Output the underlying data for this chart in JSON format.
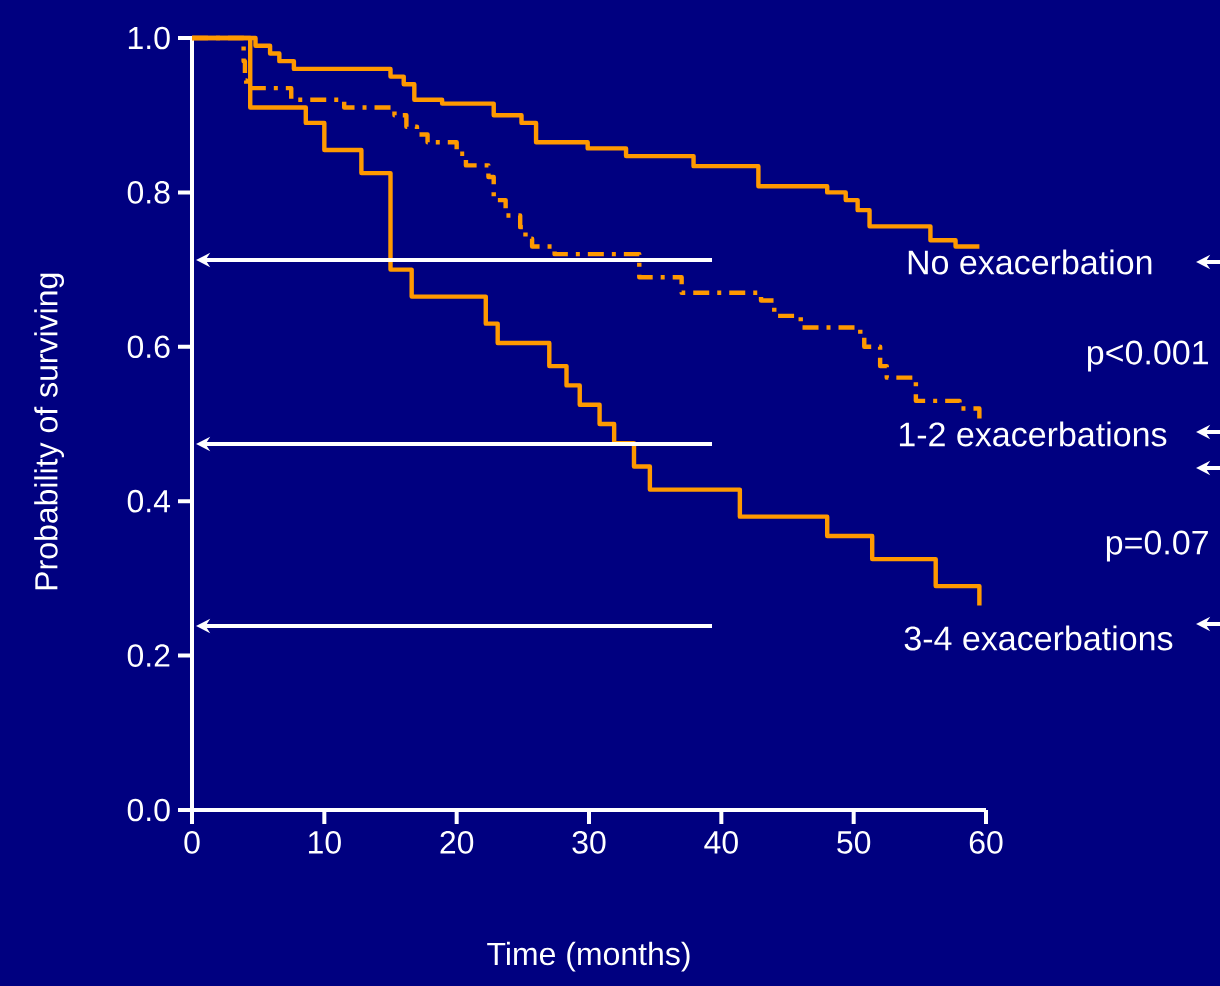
{
  "chart_data": {
    "type": "step",
    "xlabel": "Time (months)",
    "ylabel": "Probability of surviving",
    "xlim": [
      0,
      60
    ],
    "ylim": [
      0,
      1
    ],
    "xticks": [
      0,
      10,
      20,
      30,
      40,
      50,
      60
    ],
    "yticks": [
      {
        "value": 0,
        "label": "0.0"
      },
      0.2,
      0.4,
      0.6,
      0.8,
      {
        "value": 1,
        "label": "1.0"
      }
    ],
    "grid": false,
    "marker": "none",
    "annotations": [
      "No exacerbation",
      "p<0.001",
      "1-2 exacerbations",
      "p=0.07",
      "3-4 exacerbations"
    ],
    "series": [
      {
        "color": "#ff9900",
        "line_style": "solid",
        "x": [
          0,
          4.8,
          5.9,
          6.6,
          7.7,
          15.0,
          16.0,
          16.8,
          18.9,
          22.8,
          24.9,
          26.0,
          29.9,
          32.8,
          37.9,
          42.8,
          48.0,
          49.4,
          50.3,
          51.2,
          55.8,
          57.7,
          59.5
        ],
        "values": [
          1.0,
          0.99,
          0.98,
          0.97,
          0.96,
          0.95,
          0.94,
          0.92,
          0.915,
          0.9,
          0.89,
          0.865,
          0.857,
          0.847,
          0.834,
          0.808,
          0.8,
          0.79,
          0.777,
          0.756,
          0.738,
          0.73,
          0.73
        ]
      },
      {
        "color": "#ff9900",
        "line_style": "dashdot",
        "x": [
          0,
          3.9,
          4.0,
          4.1,
          7.5,
          11.5,
          15.3,
          16.2,
          17.0,
          17.8,
          20.0,
          20.7,
          22.4,
          22.8,
          23.7,
          24.8,
          25.2,
          25.7,
          27.4,
          33.8,
          37.0,
          43.0,
          44.0,
          46.0,
          50.5,
          50.8,
          52.0,
          52.5,
          54.7,
          58.0,
          59.5
        ],
        "values": [
          1.0,
          0.97,
          0.945,
          0.935,
          0.92,
          0.91,
          0.9,
          0.885,
          0.875,
          0.865,
          0.85,
          0.835,
          0.82,
          0.79,
          0.77,
          0.755,
          0.74,
          0.73,
          0.72,
          0.69,
          0.67,
          0.66,
          0.64,
          0.625,
          0.615,
          0.6,
          0.575,
          0.56,
          0.53,
          0.52,
          0.5
        ]
      },
      {
        "color": "#ff9900",
        "line_style": "solid",
        "x": [
          0,
          4.4,
          8.6,
          10.0,
          12.8,
          15.0,
          16.6,
          22.2,
          23.1,
          27.0,
          28.3,
          29.3,
          30.8,
          31.9,
          33.4,
          34.6,
          41.4,
          48.0,
          51.4,
          56.2,
          59.5
        ],
        "values": [
          1.0,
          0.91,
          0.89,
          0.855,
          0.825,
          0.7,
          0.665,
          0.63,
          0.605,
          0.575,
          0.55,
          0.525,
          0.5,
          0.475,
          0.445,
          0.415,
          0.38,
          0.355,
          0.325,
          0.29,
          0.265
        ]
      }
    ]
  }
}
